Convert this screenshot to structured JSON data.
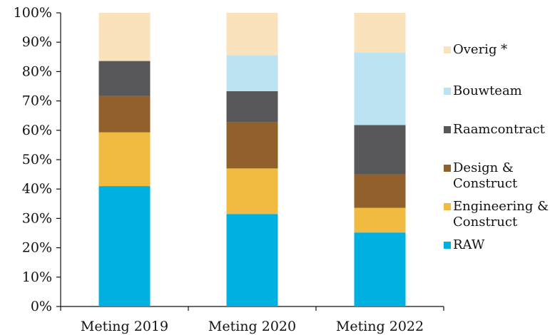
{
  "chart_data": {
    "type": "bar",
    "stacked": true,
    "categories": [
      "Meting 2019",
      "Meting 2020",
      "Meting 2022"
    ],
    "ylim": [
      0,
      100
    ],
    "yticks": [
      "0%",
      "10%",
      "20%",
      "30%",
      "40%",
      "50%",
      "60%",
      "70%",
      "80%",
      "90%",
      "100%"
    ],
    "grid": false,
    "legend_position": "right",
    "series": [
      {
        "name": "RAW",
        "color": "#00b0e0",
        "values": [
          41,
          31.5,
          25.2
        ]
      },
      {
        "name": "Engineering & Construct",
        "color": "#f0bb40",
        "values": [
          18.3,
          15.5,
          8.4
        ]
      },
      {
        "name": "Design & Construct",
        "color": "#92602a",
        "values": [
          12.4,
          15.7,
          11.4
        ]
      },
      {
        "name": "Raamcontract",
        "color": "#58585a",
        "values": [
          11.9,
          10.6,
          16.8
        ]
      },
      {
        "name": "Bouwteam",
        "color": "#bde3f3",
        "values": [
          0,
          12.3,
          24.7
        ]
      },
      {
        "name": "Overig *",
        "color": "#fae3bc",
        "values": [
          16.4,
          14.4,
          13.5
        ]
      }
    ]
  }
}
